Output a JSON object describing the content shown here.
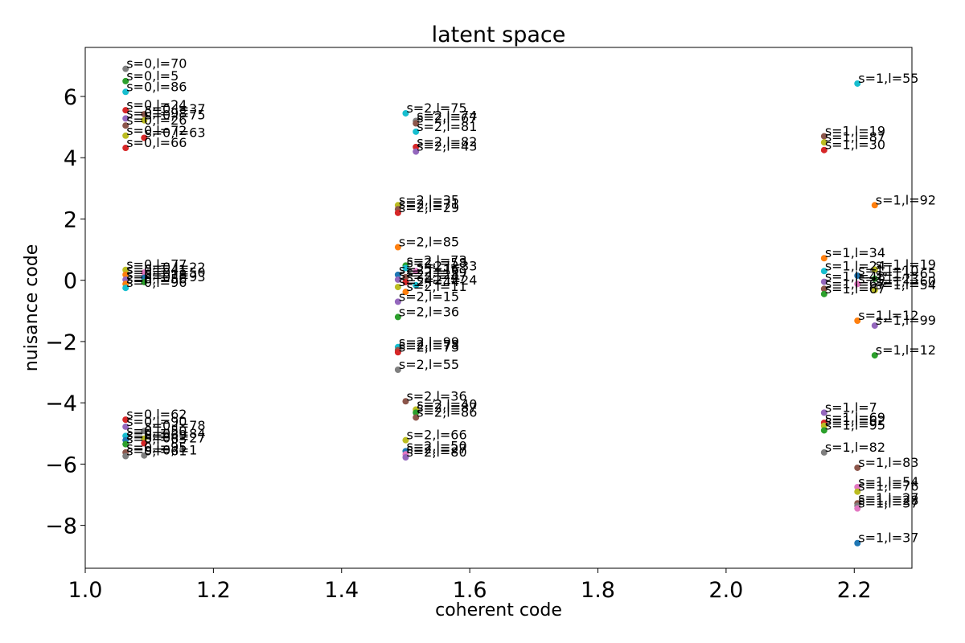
{
  "chart_data": {
    "type": "scatter",
    "title": "latent space",
    "xlabel": "coherent code",
    "ylabel": "nuisance code",
    "xlim": [
      1.0,
      2.29
    ],
    "ylim": [
      -9.4,
      7.6
    ],
    "xticks": [
      {
        "value": 1.0,
        "label": "1.0"
      },
      {
        "value": 1.2,
        "label": "1.2"
      },
      {
        "value": 1.4,
        "label": "1.4"
      },
      {
        "value": 1.6,
        "label": "1.6"
      },
      {
        "value": 1.8,
        "label": "1.8"
      },
      {
        "value": 2.0,
        "label": "2.0"
      },
      {
        "value": 2.2,
        "label": "2.2"
      }
    ],
    "yticks": [
      {
        "value": 6,
        "label": "6"
      },
      {
        "value": 4,
        "label": "4"
      },
      {
        "value": 2,
        "label": "2"
      },
      {
        "value": 0,
        "label": "0"
      },
      {
        "value": -2,
        "label": "−2"
      },
      {
        "value": -4,
        "label": "−4"
      },
      {
        "value": -6,
        "label": "−6"
      },
      {
        "value": -8,
        "label": "−8"
      }
    ],
    "grid": false,
    "points": [
      {
        "x": 1.063,
        "y": 6.9,
        "label": "s=0,l=70",
        "color": "#7f7f7f"
      },
      {
        "x": 1.063,
        "y": 6.5,
        "label": "s=0,l=5",
        "color": "#2ca02c"
      },
      {
        "x": 1.063,
        "y": 6.15,
        "label": "s=0,l=86",
        "color": "#17becf"
      },
      {
        "x": 1.063,
        "y": 5.55,
        "label": "s=0,l=24",
        "color": "#d62728"
      },
      {
        "x": 1.092,
        "y": 5.42,
        "label": "s=0,l=37",
        "color": "#8c564b"
      },
      {
        "x": 1.063,
        "y": 5.28,
        "label": "s=0,l=98",
        "color": "#9467bd"
      },
      {
        "x": 1.092,
        "y": 5.22,
        "label": "s=0,l=75",
        "color": "#bcbd22"
      },
      {
        "x": 1.063,
        "y": 5.05,
        "label": "s=0,l=26",
        "color": "#8c564b"
      },
      {
        "x": 1.063,
        "y": 4.72,
        "label": "s=0,l=72",
        "color": "#bcbd22"
      },
      {
        "x": 1.092,
        "y": 4.65,
        "label": "s=0,l=63",
        "color": "#d62728"
      },
      {
        "x": 1.063,
        "y": 4.32,
        "label": "s=0,l=66",
        "color": "#d62728"
      },
      {
        "x": 1.063,
        "y": 0.34,
        "label": "s=0,l=77",
        "color": "#bcbd22"
      },
      {
        "x": 1.092,
        "y": 0.25,
        "label": "s=0,l=22",
        "color": "#e377c2"
      },
      {
        "x": 1.063,
        "y": 0.18,
        "label": "s=0,l=41",
        "color": "#ff7f0e"
      },
      {
        "x": 1.092,
        "y": 0.08,
        "label": "s=0,l=50",
        "color": "#1f77b4"
      },
      {
        "x": 1.063,
        "y": 0.02,
        "label": "s=0,l=18",
        "color": "#9467bd"
      },
      {
        "x": 1.092,
        "y": -0.06,
        "label": "s=0,l=93",
        "color": "#2ca02c"
      },
      {
        "x": 1.063,
        "y": -0.12,
        "label": "s=0,l=56",
        "color": "#ff7f0e"
      },
      {
        "x": 1.063,
        "y": -0.25,
        "label": "s=0,l=96",
        "color": "#17becf"
      },
      {
        "x": 1.063,
        "y": -4.55,
        "label": "s=0,l=62",
        "color": "#d62728"
      },
      {
        "x": 1.063,
        "y": -4.78,
        "label": "s=0,l=90",
        "color": "#9467bd"
      },
      {
        "x": 1.092,
        "y": -4.92,
        "label": "s=0,l=78",
        "color": "#7f7f7f"
      },
      {
        "x": 1.063,
        "y": -5.08,
        "label": "s=0,l=50",
        "color": "#17becf"
      },
      {
        "x": 1.092,
        "y": -5.17,
        "label": "s=0,l=84",
        "color": "#bcbd22"
      },
      {
        "x": 1.063,
        "y": -5.22,
        "label": "s=0,l=69",
        "color": "#1f77b4"
      },
      {
        "x": 1.092,
        "y": -5.32,
        "label": "s=0,l=27",
        "color": "#d62728"
      },
      {
        "x": 1.063,
        "y": -5.35,
        "label": "s=0,l=63",
        "color": "#2ca02c"
      },
      {
        "x": 1.063,
        "y": -5.62,
        "label": "s=0,l=95",
        "color": "#8c564b"
      },
      {
        "x": 1.063,
        "y": -5.74,
        "label": "s=0,l=61",
        "color": "#7f7f7f"
      },
      {
        "x": 1.092,
        "y": -5.72,
        "label": "s=0,l=1",
        "color": "#7f7f7f"
      },
      {
        "x": 1.5,
        "y": 5.45,
        "label": "s=2,l=75",
        "color": "#17becf"
      },
      {
        "x": 1.516,
        "y": 5.2,
        "label": "s=2,l=74",
        "color": "#7f7f7f"
      },
      {
        "x": 1.516,
        "y": 5.12,
        "label": "s=2,l=67",
        "color": "#8c564b"
      },
      {
        "x": 1.516,
        "y": 4.85,
        "label": "s=2,l=81",
        "color": "#17becf"
      },
      {
        "x": 1.516,
        "y": 4.35,
        "label": "s=2,l=82",
        "color": "#d62728"
      },
      {
        "x": 1.516,
        "y": 4.2,
        "label": "s=2,l=43",
        "color": "#9467bd"
      },
      {
        "x": 1.488,
        "y": 2.45,
        "label": "s=2,l=35",
        "color": "#bcbd22"
      },
      {
        "x": 1.488,
        "y": 2.32,
        "label": "s=2,l=71",
        "color": "#8c564b"
      },
      {
        "x": 1.488,
        "y": 2.2,
        "label": "s=2,l=29",
        "color": "#d62728"
      },
      {
        "x": 1.488,
        "y": 1.08,
        "label": "s=2,l=85",
        "color": "#ff7f0e"
      },
      {
        "x": 1.5,
        "y": 0.48,
        "label": "s=2,l=73",
        "color": "#2ca02c"
      },
      {
        "x": 1.5,
        "y": 0.4,
        "label": "s=2,l=58",
        "color": "#17becf"
      },
      {
        "x": 1.516,
        "y": 0.3,
        "label": "s=2,l=33",
        "color": "#e377c2"
      },
      {
        "x": 1.488,
        "y": 0.18,
        "label": "s=2,l=16",
        "color": "#1f77b4"
      },
      {
        "x": 1.5,
        "y": 0.1,
        "label": "s=2,l=39",
        "color": "#8c564b"
      },
      {
        "x": 1.488,
        "y": 0.02,
        "label": "s=2,l=28",
        "color": "#9467bd"
      },
      {
        "x": 1.5,
        "y": -0.06,
        "label": "s=2,l=47",
        "color": "#d62728"
      },
      {
        "x": 1.516,
        "y": -0.16,
        "label": "s=2,l=24",
        "color": "#17becf"
      },
      {
        "x": 1.488,
        "y": -0.22,
        "label": "s=2,l=44",
        "color": "#bcbd22"
      },
      {
        "x": 1.5,
        "y": -0.38,
        "label": "s=2,l=11",
        "color": "#ff7f0e"
      },
      {
        "x": 1.488,
        "y": -0.7,
        "label": "s=2,l=15",
        "color": "#9467bd"
      },
      {
        "x": 1.488,
        "y": -1.2,
        "label": "s=2,l=36",
        "color": "#2ca02c"
      },
      {
        "x": 1.488,
        "y": -2.18,
        "label": "s=2,l=99",
        "color": "#17becf"
      },
      {
        "x": 1.488,
        "y": -2.28,
        "label": "s=2,l=78",
        "color": "#8c564b"
      },
      {
        "x": 1.488,
        "y": -2.35,
        "label": "s=2,l=73",
        "color": "#d62728"
      },
      {
        "x": 1.488,
        "y": -2.92,
        "label": "s=2,l=55",
        "color": "#7f7f7f"
      },
      {
        "x": 1.5,
        "y": -3.95,
        "label": "s=2,l=36",
        "color": "#8c564b"
      },
      {
        "x": 1.516,
        "y": -4.22,
        "label": "s=2,l=40",
        "color": "#bcbd22"
      },
      {
        "x": 1.516,
        "y": -4.32,
        "label": "s=2,l=87",
        "color": "#2ca02c"
      },
      {
        "x": 1.516,
        "y": -4.48,
        "label": "s=2,l=86",
        "color": "#8c564b"
      },
      {
        "x": 1.5,
        "y": -5.22,
        "label": "s=2,l=66",
        "color": "#bcbd22"
      },
      {
        "x": 1.5,
        "y": -5.58,
        "label": "s=2,l=50",
        "color": "#1f77b4"
      },
      {
        "x": 1.5,
        "y": -5.68,
        "label": "s=2,l=27",
        "color": "#e377c2"
      },
      {
        "x": 1.5,
        "y": -5.78,
        "label": "s=2,l=80",
        "color": "#9467bd"
      },
      {
        "x": 2.205,
        "y": 6.42,
        "label": "s=1,l=55",
        "color": "#17becf"
      },
      {
        "x": 2.153,
        "y": 4.7,
        "label": "s=1,l=19",
        "color": "#8c564b"
      },
      {
        "x": 2.153,
        "y": 4.5,
        "label": "s=1,l=87",
        "color": "#bcbd22"
      },
      {
        "x": 2.153,
        "y": 4.25,
        "label": "s=1,l=30",
        "color": "#d62728"
      },
      {
        "x": 2.232,
        "y": 2.45,
        "label": "s=1,l=92",
        "color": "#ff7f0e"
      },
      {
        "x": 2.153,
        "y": 0.72,
        "label": "s=1,l=34",
        "color": "#ff7f0e"
      },
      {
        "x": 2.153,
        "y": 0.3,
        "label": "s=1,l=24",
        "color": "#17becf"
      },
      {
        "x": 2.232,
        "y": 0.35,
        "label": "s=1,l=19",
        "color": "#bcbd22"
      },
      {
        "x": 2.205,
        "y": 0.15,
        "label": "s=1,l=10",
        "color": "#1f77b4"
      },
      {
        "x": 2.232,
        "y": 0.05,
        "label": "s=1,l=65",
        "color": "#2ca02c"
      },
      {
        "x": 2.153,
        "y": -0.05,
        "label": "s=1,l=48",
        "color": "#9467bd"
      },
      {
        "x": 2.205,
        "y": -0.12,
        "label": "s=1,l=23",
        "color": "#e377c2"
      },
      {
        "x": 2.232,
        "y": -0.2,
        "label": "s=1,l=60",
        "color": "#7f7f7f"
      },
      {
        "x": 2.153,
        "y": -0.28,
        "label": "s=1,l=67",
        "color": "#8c564b"
      },
      {
        "x": 2.153,
        "y": -0.45,
        "label": "s=1,l=67",
        "color": "#2ca02c"
      },
      {
        "x": 2.232,
        "y": -0.32,
        "label": "s=1,l=54",
        "color": "#bcbd22"
      },
      {
        "x": 2.205,
        "y": -1.32,
        "label": "s=1,l=12",
        "color": "#ff7f0e"
      },
      {
        "x": 2.232,
        "y": -1.48,
        "label": "s=1,l=99",
        "color": "#9467bd"
      },
      {
        "x": 2.232,
        "y": -2.45,
        "label": "s=1,l=12",
        "color": "#2ca02c"
      },
      {
        "x": 2.153,
        "y": -4.32,
        "label": "s=1,l=7",
        "color": "#9467bd"
      },
      {
        "x": 2.153,
        "y": -4.65,
        "label": "s=1,l=69",
        "color": "#d62728"
      },
      {
        "x": 2.153,
        "y": -4.75,
        "label": "s=1,l=62",
        "color": "#bcbd22"
      },
      {
        "x": 2.153,
        "y": -4.9,
        "label": "s=1,l=95",
        "color": "#2ca02c"
      },
      {
        "x": 2.153,
        "y": -5.62,
        "label": "s=1,l=82",
        "color": "#7f7f7f"
      },
      {
        "x": 2.205,
        "y": -6.12,
        "label": "s=1,l=83",
        "color": "#8c564b"
      },
      {
        "x": 2.205,
        "y": -6.75,
        "label": "s=1,l=54",
        "color": "#e377c2"
      },
      {
        "x": 2.205,
        "y": -6.9,
        "label": "s=1,l=76",
        "color": "#bcbd22"
      },
      {
        "x": 2.205,
        "y": -7.28,
        "label": "s=1,l=27",
        "color": "#8c564b"
      },
      {
        "x": 2.205,
        "y": -7.36,
        "label": "s=1,l=28",
        "color": "#7f7f7f"
      },
      {
        "x": 2.205,
        "y": -7.45,
        "label": "s=1,l=37",
        "color": "#e377c2"
      },
      {
        "x": 2.205,
        "y": -8.58,
        "label": "s=1,l=37",
        "color": "#1f77b4"
      }
    ]
  }
}
